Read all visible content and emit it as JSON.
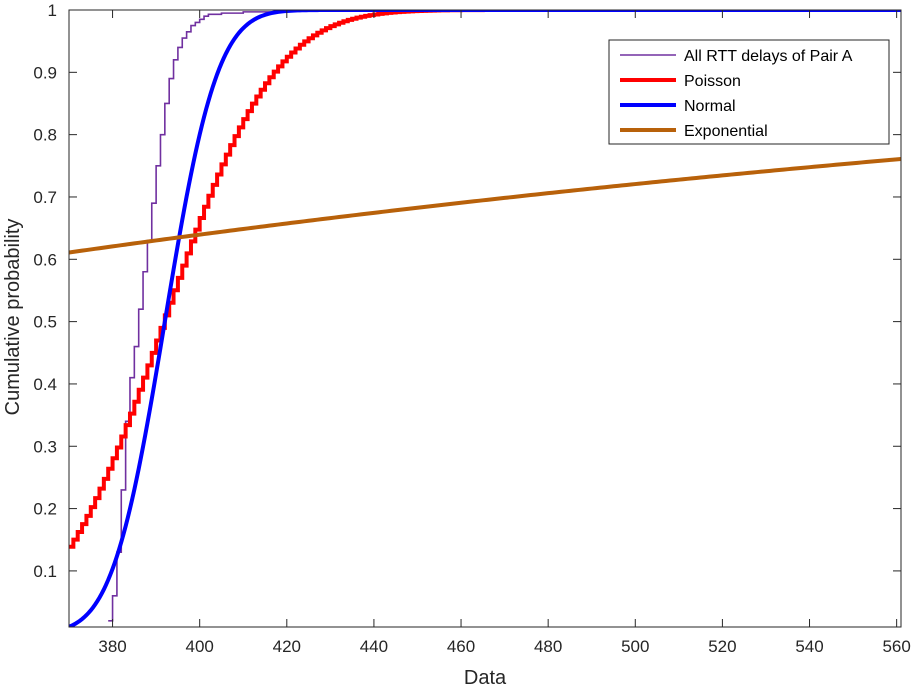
{
  "chart_data": {
    "type": "line",
    "title": "",
    "xlabel": "Data",
    "ylabel": "Cumulative probability",
    "xlim": [
      370,
      561
    ],
    "ylim": [
      0.01,
      1
    ],
    "xticks": [
      380,
      400,
      420,
      440,
      460,
      480,
      500,
      520,
      540,
      560
    ],
    "yticks": [
      0.1,
      0.2,
      0.3,
      0.4,
      0.5,
      0.6,
      0.7,
      0.8,
      0.9,
      1
    ],
    "ytick_labels": [
      "0.1",
      "0.2",
      "0.3",
      "0.4",
      "0.5",
      "0.6",
      "0.7",
      "0.8",
      "0.9",
      "1"
    ],
    "grid": false,
    "legend_position": "top-right",
    "series": [
      {
        "name": "All RTT delays of Pair A",
        "color": "#7030A0",
        "style": "stairs",
        "x": [
          379,
          380,
          381,
          382,
          383,
          384,
          385,
          386,
          387,
          388,
          389,
          390,
          391,
          392,
          393,
          394,
          395,
          396,
          397,
          398,
          399,
          400,
          401,
          402,
          405,
          410,
          420,
          430
        ],
        "y": [
          0.02,
          0.06,
          0.13,
          0.23,
          0.34,
          0.41,
          0.46,
          0.52,
          0.58,
          0.63,
          0.69,
          0.75,
          0.8,
          0.85,
          0.89,
          0.92,
          0.94,
          0.955,
          0.965,
          0.975,
          0.98,
          0.985,
          0.99,
          0.993,
          0.995,
          0.997,
          0.999,
          1.0
        ]
      },
      {
        "name": "Poisson",
        "color": "#FF0000",
        "style": "poisson_cdf",
        "lambda": 392,
        "x_range": [
          370,
          561
        ]
      },
      {
        "name": "Normal",
        "color": "#0000FF",
        "style": "normal_cdf",
        "mean": 392,
        "std": 9.5,
        "x_range": [
          370,
          561
        ]
      },
      {
        "name": "Exponential",
        "color": "#B8610A",
        "style": "exponential_cdf",
        "mean": 392,
        "x_range": [
          370,
          561
        ]
      }
    ]
  }
}
